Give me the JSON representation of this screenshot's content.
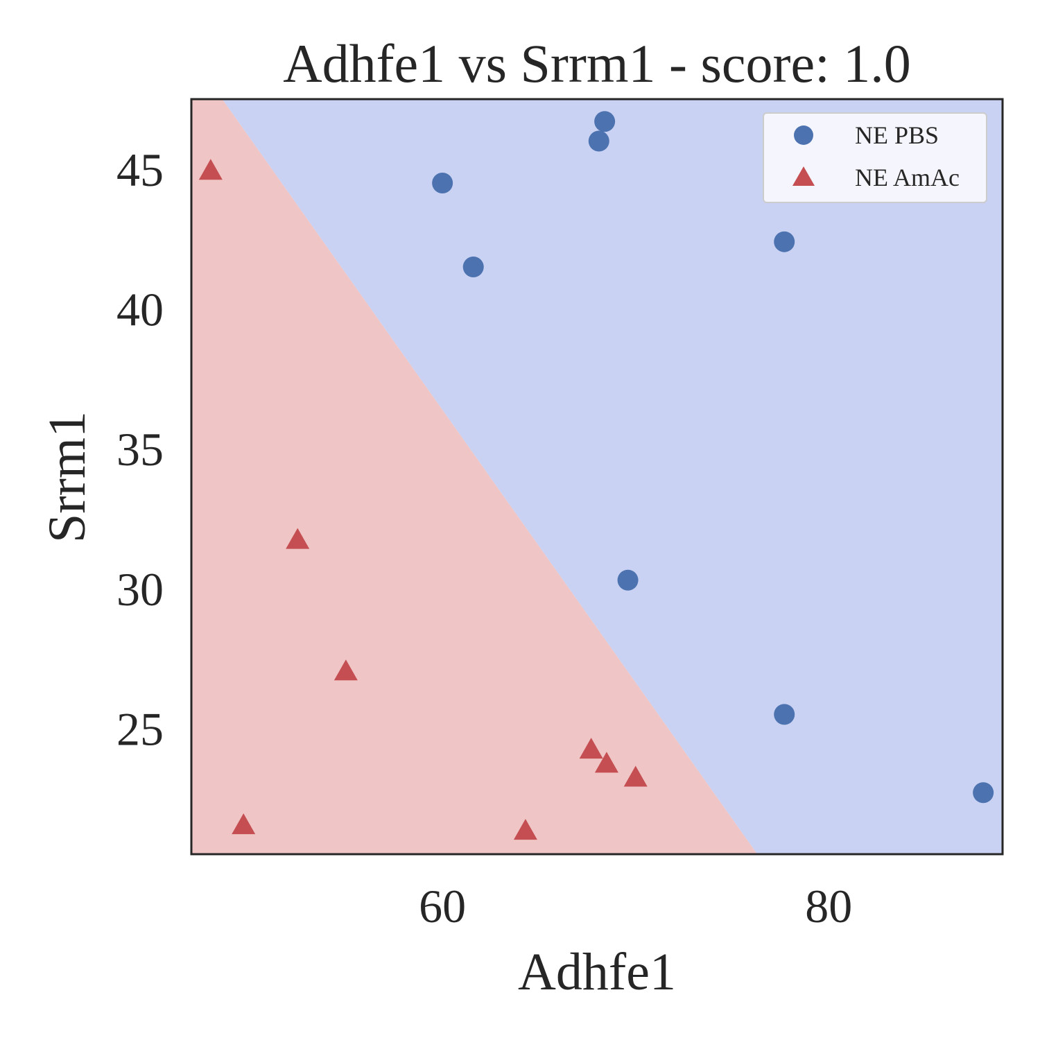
{
  "chart_data": {
    "type": "scatter",
    "title": "Adhfe1 vs Srrm1 - score: 1.0",
    "xlabel": "Adhfe1",
    "ylabel": "Srrm1",
    "xlim": [
      47.0,
      89.0
    ],
    "ylim": [
      20.5,
      47.5
    ],
    "xticks": [
      60,
      80
    ],
    "yticks": [
      25,
      30,
      35,
      40,
      45
    ],
    "grid": false,
    "legend_position": "top-right",
    "decision_boundary": {
      "points": [
        [
          48.6,
          47.5
        ],
        [
          76.3,
          20.5
        ]
      ],
      "region_colors": {
        "NE PBS": "#c9d2f2",
        "NE AmAc": "#efc5c5"
      }
    },
    "series": [
      {
        "name": "NE PBS",
        "marker": "circle",
        "color": "#4c72b0",
        "points": [
          [
            60.0,
            44.5
          ],
          [
            61.6,
            41.5
          ],
          [
            68.1,
            46.0
          ],
          [
            68.4,
            46.7
          ],
          [
            69.6,
            30.3
          ],
          [
            77.7,
            42.4
          ],
          [
            77.7,
            25.5
          ],
          [
            88.0,
            22.7
          ]
        ]
      },
      {
        "name": "NE AmAc",
        "marker": "triangle",
        "color": "#c44e52",
        "points": [
          [
            48.0,
            44.9
          ],
          [
            49.7,
            21.5
          ],
          [
            52.5,
            31.7
          ],
          [
            55.0,
            27.0
          ],
          [
            64.3,
            21.3
          ],
          [
            67.7,
            24.2
          ],
          [
            68.5,
            23.7
          ],
          [
            70.0,
            23.2
          ]
        ]
      }
    ]
  }
}
